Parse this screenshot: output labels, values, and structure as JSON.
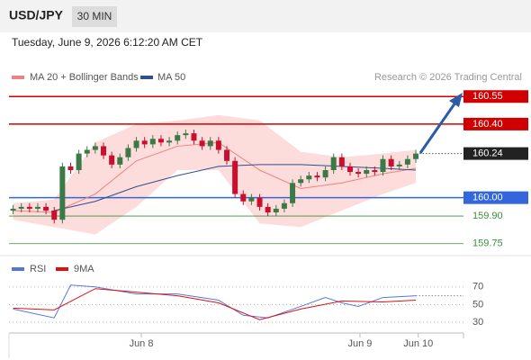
{
  "chart_data": {
    "type": "candlestick",
    "symbol": "USD/JPY",
    "timeframe": "30 MIN",
    "subtitle": "Tuesday, June 9, 2026 6:12:20 AM CET",
    "source": "Research © 2026 Trading Central",
    "ylim": [
      159.69,
      160.61
    ],
    "xlim": [
      -0.5,
      54.8
    ],
    "up_color": "#3b7a47",
    "down_color": "#c8102e",
    "open": [
      159.93,
      159.94,
      159.95,
      159.94,
      159.95,
      159.93,
      159.88,
      160.17,
      160.15,
      160.24,
      160.26,
      160.28,
      160.23,
      160.18,
      160.22,
      160.27,
      160.31,
      160.29,
      160.32,
      160.3,
      160.31,
      160.34,
      160.35,
      160.31,
      160.28,
      160.31,
      160.26,
      160.2,
      160.02,
      159.98,
      160.0,
      159.95,
      159.92,
      159.94,
      159.97,
      160.08,
      160.1,
      160.12,
      160.11,
      160.15,
      160.22,
      160.17,
      160.14,
      160.13,
      160.15,
      160.14,
      160.21,
      160.17,
      160.18,
      160.21
    ],
    "high": [
      159.96,
      159.97,
      159.97,
      159.97,
      159.97,
      159.95,
      160.19,
      160.19,
      160.26,
      160.28,
      160.3,
      160.3,
      160.25,
      160.24,
      160.29,
      160.33,
      160.33,
      160.34,
      160.34,
      160.33,
      160.36,
      160.37,
      160.37,
      160.33,
      160.33,
      160.33,
      160.28,
      160.22,
      160.04,
      160.02,
      160.02,
      159.97,
      159.96,
      159.99,
      160.1,
      160.12,
      160.14,
      160.14,
      160.17,
      160.24,
      160.24,
      160.19,
      160.16,
      160.17,
      160.17,
      160.23,
      160.23,
      160.2,
      160.23,
      160.26
    ],
    "low": [
      159.91,
      159.92,
      159.92,
      159.92,
      159.91,
      159.86,
      159.86,
      160.13,
      160.13,
      160.22,
      160.24,
      160.21,
      160.16,
      160.16,
      160.2,
      160.25,
      160.27,
      160.27,
      160.28,
      160.28,
      160.29,
      160.32,
      160.29,
      160.26,
      160.26,
      160.24,
      160.18,
      160.0,
      159.96,
      159.96,
      159.93,
      159.9,
      159.9,
      159.92,
      159.95,
      160.06,
      160.08,
      160.09,
      160.09,
      160.13,
      160.15,
      160.12,
      160.11,
      160.11,
      160.12,
      160.12,
      160.15,
      160.15,
      160.16,
      160.19
    ],
    "close": [
      159.94,
      159.95,
      159.94,
      159.95,
      159.93,
      159.88,
      160.17,
      160.15,
      160.24,
      160.26,
      160.28,
      160.23,
      160.18,
      160.22,
      160.27,
      160.31,
      160.29,
      160.32,
      160.3,
      160.31,
      160.34,
      160.35,
      160.31,
      160.28,
      160.31,
      160.26,
      160.2,
      160.02,
      159.98,
      160.0,
      159.95,
      159.92,
      159.94,
      159.97,
      160.08,
      160.1,
      160.12,
      160.11,
      160.15,
      160.22,
      160.17,
      160.14,
      160.13,
      160.15,
      160.14,
      160.21,
      160.17,
      160.18,
      160.21,
      160.24
    ],
    "bands": {
      "name": "MA 20 + Bollinger Bands",
      "color": "#f08080",
      "fill": "#fddcdc",
      "x": [
        0,
        5,
        10,
        15,
        20,
        25,
        30,
        35,
        40,
        45,
        49
      ],
      "upper": [
        159.97,
        159.99,
        160.3,
        160.4,
        160.42,
        160.45,
        160.42,
        160.25,
        160.22,
        160.24,
        160.26
      ],
      "values": [
        159.93,
        159.92,
        160.02,
        160.2,
        160.28,
        160.3,
        160.15,
        160.05,
        160.08,
        160.13,
        160.16
      ],
      "lower": [
        159.88,
        159.84,
        159.8,
        159.95,
        160.15,
        160.15,
        159.86,
        159.84,
        159.93,
        160.02,
        160.08
      ]
    },
    "ma50": {
      "name": "MA 50",
      "color": "#2f4f8f",
      "x": [
        5,
        10,
        15,
        20,
        25,
        30,
        35,
        40,
        45,
        49
      ],
      "values": [
        159.93,
        159.98,
        160.06,
        160.12,
        160.17,
        160.18,
        160.18,
        160.17,
        160.16,
        160.15
      ]
    },
    "levels": [
      {
        "value": 160.55,
        "color": "#d00000",
        "kind": "box"
      },
      {
        "value": 160.4,
        "label": "160.40",
        "color": "#d00000",
        "kind": "box"
      },
      {
        "value": 160.24,
        "color": "#222222",
        "kind": "current"
      },
      {
        "value": 160,
        "label": "160.00",
        "color": "#3366dd",
        "kind": "box"
      },
      {
        "value": 159.9,
        "label": "159.90",
        "color": "#3a8f3a",
        "kind": "text"
      },
      {
        "value": 159.75,
        "color": "#3a8f3a",
        "kind": "text"
      }
    ],
    "xticks": [
      {
        "value": 15.6,
        "label": "Jun 8"
      },
      {
        "value": 42.2,
        "label": "Jun 9"
      },
      {
        "value": 49.3,
        "label": "Jun 10"
      }
    ],
    "rsi": {
      "ylim": [
        20,
        85
      ],
      "yticks": [
        70,
        50,
        30
      ],
      "series": [
        {
          "name": "RSI",
          "color": "#5577dd",
          "x": [
            0,
            5,
            7,
            10,
            15,
            20,
            25,
            28,
            31,
            35,
            38,
            40,
            42,
            45,
            49
          ],
          "values": [
            45,
            35,
            72,
            70,
            62,
            62,
            55,
            38,
            35,
            48,
            58,
            52,
            48,
            58,
            60
          ]
        },
        {
          "name": "9MA",
          "color": "#dd1111",
          "x": [
            0,
            5,
            10,
            15,
            20,
            25,
            30,
            35,
            40,
            45,
            49
          ],
          "values": [
            46,
            44,
            68,
            64,
            60,
            52,
            33,
            45,
            54,
            53,
            55
          ]
        }
      ]
    }
  }
}
